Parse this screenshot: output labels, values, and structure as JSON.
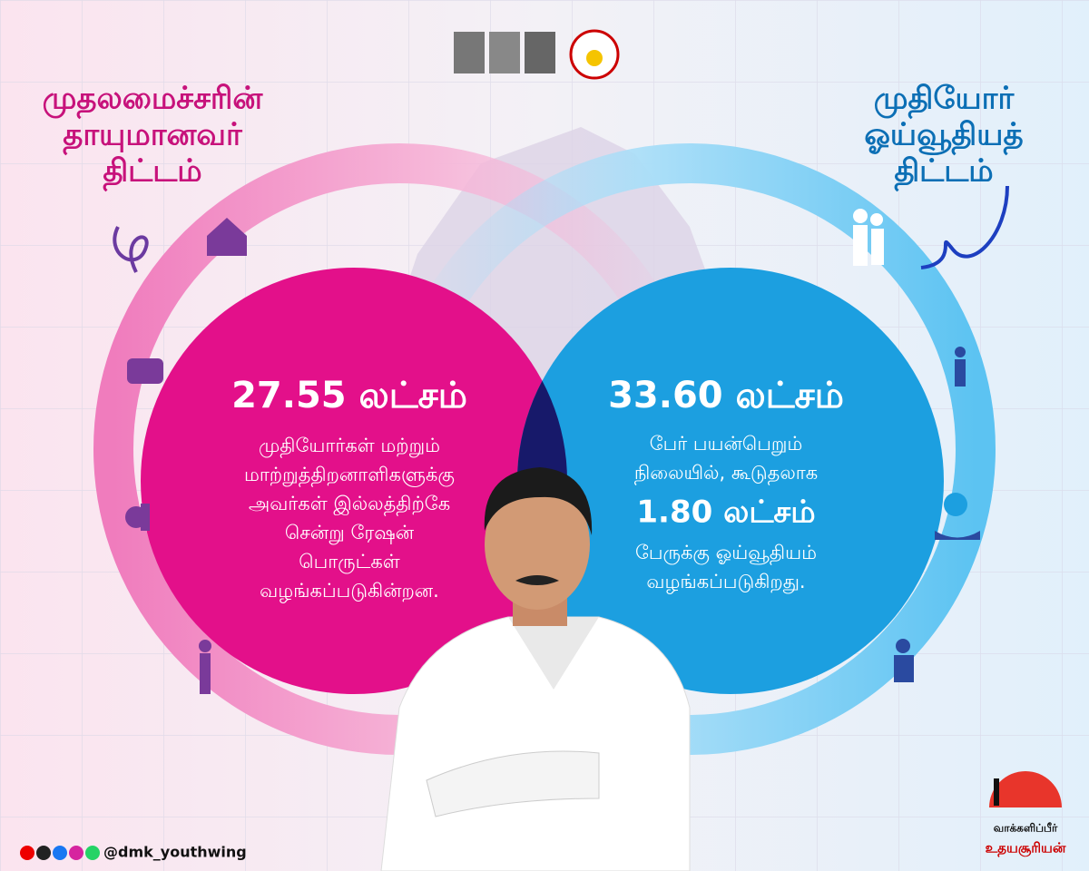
{
  "left_panel": {
    "title": [
      "முதலமைச்சரின்",
      "தாயுமானவர்",
      "திட்டம்"
    ],
    "headline": "27.55 லட்சம்",
    "body": [
      "முதியோர்கள் மற்றும்",
      "மாற்றுத்திறனாளிகளுக்கு",
      "அவர்கள் இல்லத்திற்கே",
      "சென்று ரேஷன்",
      "பொருட்கள்",
      "வழங்கப்படுகின்றன."
    ]
  },
  "right_panel": {
    "title": [
      "முதியோர்",
      "ஓய்வூதியத்",
      "திட்டம்"
    ],
    "headline": "33.60 லட்சம்",
    "body_top": [
      "பேர் பயன்பெறும்",
      "நிலையில், கூடுதலாக"
    ],
    "highlight": "1.80 லட்சம்",
    "body_bottom": [
      "பேருக்கு ஓய்வூதியம்",
      "வழங்கப்படுகிறது."
    ]
  },
  "footer": {
    "handle": "@dmk_youthwing",
    "logo_text": [
      "வாக்களிப்பீர்",
      "உதயசூரியன்"
    ]
  }
}
